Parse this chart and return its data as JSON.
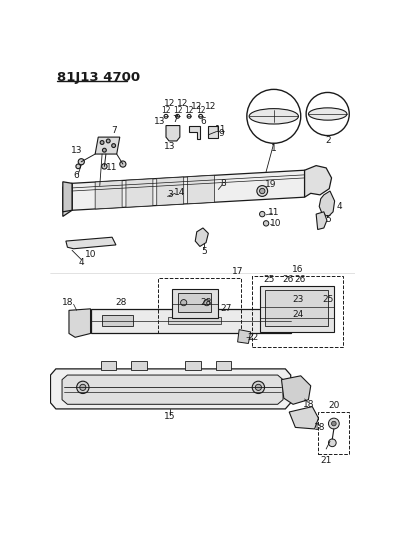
{
  "title": "81J13 4700",
  "bg_color": "#ffffff",
  "line_color": "#1a1a1a",
  "title_fontsize": 9.5,
  "label_fontsize": 6.5,
  "fig_width": 3.96,
  "fig_height": 5.33,
  "dpi": 100
}
